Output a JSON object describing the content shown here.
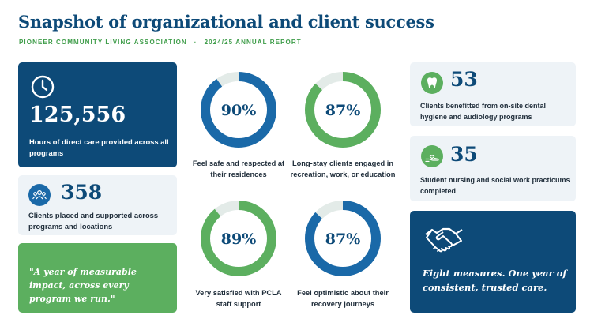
{
  "header": {
    "title": "Snapshot of organizational and client success",
    "org": "PIONEER COMMUNITY LIVING ASSOCIATION",
    "separator": "·",
    "report": "2024/25 ANNUAL REPORT"
  },
  "colors": {
    "navy": "#0d4a78",
    "green": "#5caf5f",
    "blue": "#1a69a8",
    "ring_track": "#e3ebe8"
  },
  "left": {
    "care_hours": {
      "icon": "clock-icon",
      "value": "125,556",
      "label": "Hours of direct care provided across all programs"
    },
    "clients_placed": {
      "icon": "people-icon",
      "value": "358",
      "label": "Clients placed and supported across programs and locations"
    },
    "quote": "\"A year of measurable impact, across every program we run.\""
  },
  "rings": [
    {
      "value": "90%",
      "fraction": 0.9,
      "color": "#1a69a8",
      "caption": "Feel safe and respected at their residences"
    },
    {
      "value": "87%",
      "fraction": 0.87,
      "color": "#5caf5f",
      "caption": "Long-stay clients engaged in recreation, work, or education"
    },
    {
      "value": "89%",
      "fraction": 0.89,
      "color": "#5caf5f",
      "caption": "Very satisfied with PCLA staff support"
    },
    {
      "value": "87%",
      "fraction": 0.87,
      "color": "#1a69a8",
      "caption": "Feel optimistic about their recovery journeys"
    }
  ],
  "right": {
    "dental": {
      "icon": "tooth-icon",
      "value": "53",
      "label": "Clients benefitted from on-site dental hygiene and audiology programs"
    },
    "practicums": {
      "icon": "hand-heart-icon",
      "value": "35",
      "label": "Student nursing and social work practicums completed"
    },
    "closing": {
      "icon": "handshake-icon",
      "text": "Eight measures. One year of consistent, trusted care."
    }
  }
}
